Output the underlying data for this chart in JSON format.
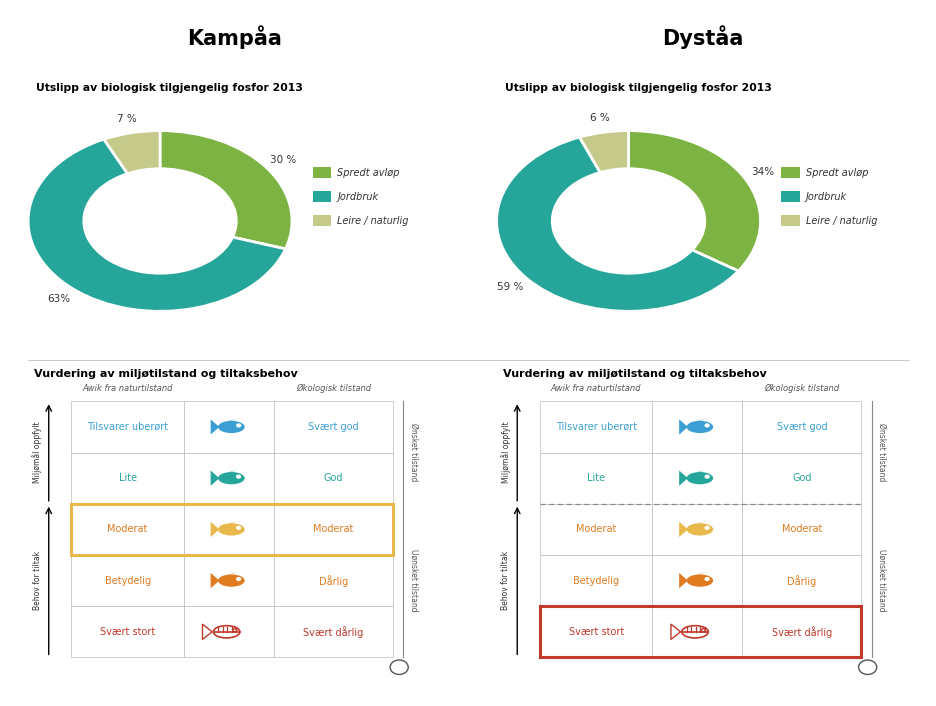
{
  "title_left": "Kampåa",
  "title_right": "Dyståa",
  "pie_title": "Utslipp av biologisk tilgjengelig fosfor 2013",
  "legend_labels": [
    "Spredt avløp",
    "Jordbruk",
    "Leire / naturlig"
  ],
  "pie_colors": [
    "#7cb342",
    "#26a69a",
    "#c5c98a"
  ],
  "kampaa_values": [
    30,
    63,
    7
  ],
  "kampaa_labels": [
    "30 %",
    "63%",
    "7 %"
  ],
  "kampaa_label_angles_override": [
    null,
    null,
    null
  ],
  "dystaa_values": [
    34,
    59,
    6
  ],
  "dystaa_labels": [
    "34%",
    "59 %",
    "6 %"
  ],
  "bg_color": "#e8e8e8",
  "panel_bg": "#e8e8e8",
  "white": "#ffffff",
  "grid_title": "Vurdering av miljøtilstand og tiltaksbehov",
  "col1_header": "Awik fra naturtilstand",
  "col3_header": "Økologisk tilstand",
  "right_label_top": "Ønsket tilstand",
  "right_label_bottom": "Uønsket tilstand",
  "left_label_top": "Miljømål oppfylt",
  "left_label_bottom": "Behov for tiltak",
  "rows": [
    {
      "col1": "Tilsvarer uberørt",
      "col2_color": "#3b9fd4",
      "col3": "Svært god",
      "text_color": "#3b9fd4"
    },
    {
      "col1": "Lite",
      "col2_color": "#26a69a",
      "col3": "God",
      "text_color": "#26a69a"
    },
    {
      "col1": "Moderat",
      "col2_color": "#e8b84b",
      "col3": "Moderat",
      "text_color": "#e07b20"
    },
    {
      "col1": "Betydelig",
      "col2_color": "#e07b20",
      "col3": "Dårlig",
      "text_color": "#e07b20"
    },
    {
      "col1": "Svært stort",
      "col2_color": "#c0392b",
      "col3": "Svært dårlig",
      "text_color": "#c0392b"
    }
  ],
  "kampaa_highlight_row": 2,
  "kampaa_highlight_color": "#e8b84b",
  "dystaa_highlight_row": 4,
  "dystaa_highlight_color": "#c0392b"
}
